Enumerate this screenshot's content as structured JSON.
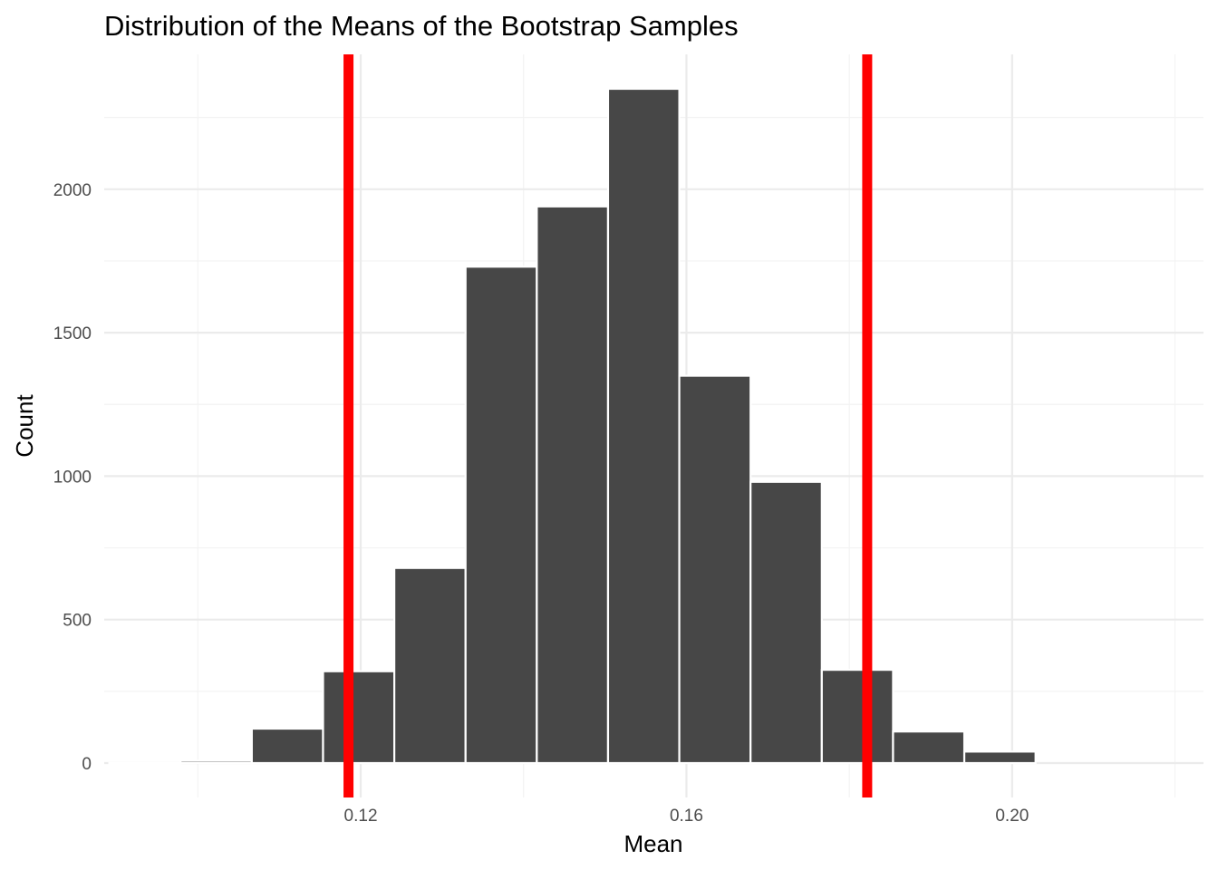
{
  "chart_data": {
    "type": "bar",
    "title": "Distribution of the Means of the Bootstrap Samples",
    "xlabel": "Mean",
    "ylabel": "Count",
    "xlim": [
      0.0885,
      0.2235
    ],
    "ylim": [
      -120,
      2470
    ],
    "x_ticks": [
      {
        "value": 0.12,
        "label": "0.12"
      },
      {
        "value": 0.16,
        "label": "0.16"
      },
      {
        "value": 0.2,
        "label": "0.20"
      }
    ],
    "y_ticks": [
      {
        "value": 0,
        "label": "0"
      },
      {
        "value": 500,
        "label": "500"
      },
      {
        "value": 1000,
        "label": "1000"
      },
      {
        "value": 1500,
        "label": "1500"
      },
      {
        "value": 2000,
        "label": "2000"
      }
    ],
    "bin_width": 0.00875,
    "bins": [
      {
        "x": 0.0935,
        "count": 0
      },
      {
        "x": 0.10225,
        "count": 8
      },
      {
        "x": 0.111,
        "count": 120
      },
      {
        "x": 0.11975,
        "count": 320
      },
      {
        "x": 0.1285,
        "count": 680
      },
      {
        "x": 0.13725,
        "count": 1730
      },
      {
        "x": 0.146,
        "count": 1940
      },
      {
        "x": 0.15475,
        "count": 2350
      },
      {
        "x": 0.1635,
        "count": 1350
      },
      {
        "x": 0.17225,
        "count": 980
      },
      {
        "x": 0.181,
        "count": 325
      },
      {
        "x": 0.18975,
        "count": 110
      },
      {
        "x": 0.1985,
        "count": 40
      }
    ],
    "vlines": [
      0.1185,
      0.1822
    ],
    "colors": {
      "bar_fill": "#474747",
      "bar_edge": "#ffffff",
      "vline": "#ff0000",
      "grid_major": "#ebebeb",
      "grid_minor": "#f3f3f3"
    },
    "grid": true,
    "legend": "none"
  }
}
